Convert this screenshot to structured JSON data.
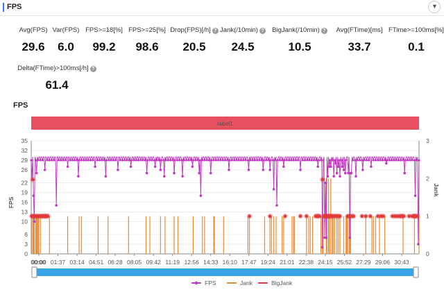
{
  "panel": {
    "title": "FPS"
  },
  "metrics": [
    {
      "label": "Avg(FPS)",
      "value": "29.6",
      "info": false
    },
    {
      "label": "Var(FPS)",
      "value": "6.0",
      "info": false
    },
    {
      "label": "FPS>=18[%]",
      "value": "99.2",
      "info": false
    },
    {
      "label": "FPS>=25[%]",
      "value": "98.6",
      "info": false
    },
    {
      "label": "Drop(FPS)[/h]",
      "value": "20.5",
      "info": true
    },
    {
      "label": "Jank(/10min)",
      "value": "24.5",
      "info": true
    },
    {
      "label": "BigJank(/10min)",
      "value": "10.5",
      "info": true
    },
    {
      "label": "Avg(FTime)[ms]",
      "value": "33.7",
      "info": false
    },
    {
      "label": "FTime>=100ms[%]",
      "value": "0.1",
      "info": false
    },
    {
      "label": "Delta(FTime)>100ms[/h]",
      "value": "61.4",
      "info": true
    }
  ],
  "info_glyph": "?",
  "collapse_icon": "chevron-down-icon",
  "chart_data": {
    "type": "line",
    "title": "FPS",
    "scene_label": "label1",
    "ylabel": "FPS",
    "y2label": "Jank",
    "ylim": [
      0,
      35
    ],
    "y2lim": [
      0,
      3
    ],
    "y_ticks": [
      0,
      3,
      6,
      10,
      13,
      16,
      19,
      22,
      26,
      29,
      32,
      35
    ],
    "y2_ticks": [
      0,
      1,
      2,
      3
    ],
    "x_ticks": [
      "00:00",
      "01:37",
      "03:14",
      "04:51",
      "06:28",
      "08:05",
      "09:42",
      "11:19",
      "12:56",
      "14:33",
      "16:10",
      "17:47",
      "19:24",
      "21:01",
      "22:38",
      "24:15",
      "25:52",
      "27:29",
      "29:06",
      "30:43"
    ],
    "x_ticks_extra": [
      "00:00"
    ],
    "series": [
      {
        "name": "FPS",
        "color": "#c03cbf",
        "baseline": 30,
        "dips": [
          [
            1,
            23
          ],
          [
            3,
            18
          ],
          [
            4,
            10
          ],
          [
            7,
            25
          ],
          [
            18,
            26
          ],
          [
            33,
            15
          ],
          [
            48,
            27
          ],
          [
            62,
            24
          ],
          [
            84,
            27
          ],
          [
            98,
            24
          ],
          [
            114,
            26
          ],
          [
            131,
            27
          ],
          [
            152,
            25
          ],
          [
            163,
            27
          ],
          [
            170,
            26
          ],
          [
            175,
            24
          ],
          [
            188,
            25
          ],
          [
            199,
            24
          ],
          [
            212,
            27
          ],
          [
            221,
            25
          ],
          [
            223,
            18
          ],
          [
            236,
            25
          ],
          [
            260,
            26
          ],
          [
            286,
            26
          ],
          [
            305,
            26
          ],
          [
            314,
            26
          ],
          [
            319,
            20
          ],
          [
            323,
            15
          ],
          [
            332,
            27
          ],
          [
            354,
            26
          ],
          [
            377,
            27
          ],
          [
            383,
            2
          ],
          [
            386,
            5
          ],
          [
            387,
            22
          ],
          [
            388,
            5
          ],
          [
            390,
            24
          ],
          [
            392,
            27
          ],
          [
            394,
            27
          ],
          [
            398,
            24
          ],
          [
            400,
            28
          ],
          [
            402,
            25
          ],
          [
            404,
            27
          ],
          [
            406,
            24
          ],
          [
            409,
            27
          ],
          [
            411,
            26
          ],
          [
            413,
            25
          ],
          [
            417,
            25
          ],
          [
            419,
            5
          ],
          [
            420,
            25
          ],
          [
            421,
            25
          ],
          [
            427,
            24
          ],
          [
            436,
            26
          ],
          [
            447,
            27
          ],
          [
            467,
            28
          ],
          [
            491,
            25
          ],
          [
            505,
            18
          ],
          [
            509,
            3
          ]
        ]
      },
      {
        "name": "Jank",
        "color": "#f08a30",
        "spikes": [
          0.5,
          2,
          3,
          3.5,
          4,
          6,
          7,
          8,
          9,
          10,
          12,
          24,
          48,
          63,
          66,
          88,
          101,
          128,
          151,
          156,
          170,
          176,
          188,
          193,
          213,
          225,
          228,
          240,
          241,
          253,
          285,
          287,
          307,
          314,
          316,
          319,
          322,
          330,
          332,
          343,
          345,
          346,
          362,
          365,
          367,
          370,
          381,
          383,
          384,
          388,
          389,
          391,
          392,
          394,
          396,
          397,
          399,
          402,
          404,
          406,
          411,
          414,
          415,
          416,
          418,
          419,
          420,
          440,
          448,
          450,
          453,
          458,
          465,
          489,
          504,
          510
        ],
        "tall_spikes": [
          388,
          391,
          394
        ],
        "tall_value": 2
      },
      {
        "name": "BigJank",
        "color": "#e13a3a",
        "markers": [
          0.5,
          2,
          3,
          5,
          7,
          8,
          10,
          12,
          14,
          15,
          16,
          18,
          19,
          20,
          22,
          287,
          314,
          334,
          354,
          362,
          374,
          376,
          377,
          379,
          385,
          386,
          387,
          388,
          390,
          391,
          392,
          393,
          394,
          396,
          398,
          400,
          402,
          404,
          406,
          416,
          418,
          420,
          422,
          424,
          435,
          440,
          446,
          456,
          460,
          463,
          475,
          478,
          481,
          484,
          486,
          488,
          490,
          497,
          501,
          503,
          504,
          505,
          506,
          508
        ],
        "markers_high": [
          [
            2,
            23
          ],
          [
            383,
            23
          ]
        ]
      }
    ],
    "x_count": 511
  },
  "legend": [
    {
      "name": "FPS",
      "color": "#c03cbf"
    },
    {
      "name": "Jank",
      "color": "#f08a30"
    },
    {
      "name": "BigJank",
      "color": "#e13a3a"
    }
  ]
}
